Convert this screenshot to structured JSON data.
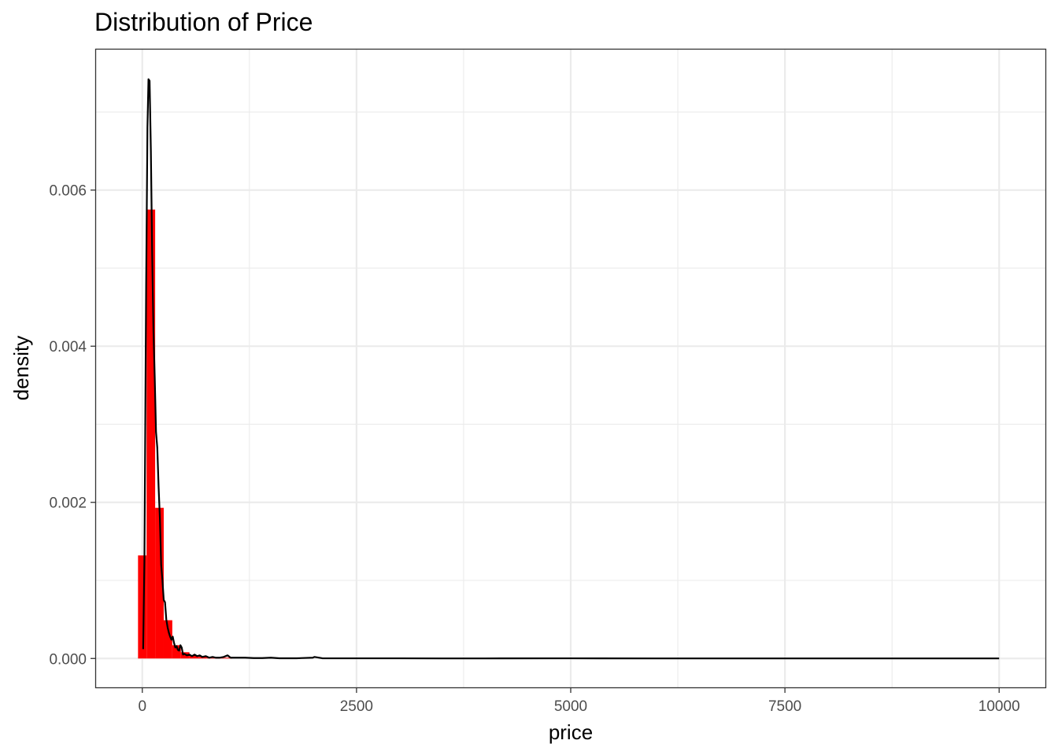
{
  "chart_data": {
    "type": "histogram",
    "title": "Distribution of Price",
    "xlabel": "price",
    "ylabel": "density",
    "xlim": [
      -540,
      10540
    ],
    "ylim": [
      -0.00037,
      0.0078
    ],
    "x_ticks": [
      0,
      2500,
      5000,
      7500,
      10000
    ],
    "x_tick_labels": [
      "0",
      "2500",
      "5000",
      "7500",
      "10000"
    ],
    "y_ticks": [
      0,
      0.002,
      0.004,
      0.006
    ],
    "y_tick_labels": [
      "0.000",
      "0.002",
      "0.004",
      "0.006"
    ],
    "x_minor_ticks": [
      1250,
      3750,
      6250,
      8750
    ],
    "y_minor_ticks": [
      0.001,
      0.003,
      0.005,
      0.007
    ],
    "grid": true,
    "legend": "none",
    "histogram": {
      "fill_color": "#ff0000",
      "bins": [
        {
          "x0": -50,
          "x1": 50,
          "density": 0.00132
        },
        {
          "x0": 50,
          "x1": 150,
          "density": 0.00575
        },
        {
          "x0": 150,
          "x1": 250,
          "density": 0.00193
        },
        {
          "x0": 250,
          "x1": 350,
          "density": 0.00049
        },
        {
          "x0": 350,
          "x1": 450,
          "density": 0.00017
        },
        {
          "x0": 450,
          "x1": 550,
          "density": 8e-05
        },
        {
          "x0": 550,
          "x1": 650,
          "density": 4e-05
        },
        {
          "x0": 650,
          "x1": 750,
          "density": 2e-05
        },
        {
          "x0": 750,
          "x1": 850,
          "density": 1e-05
        },
        {
          "x0": 850,
          "x1": 950,
          "density": 1e-05
        },
        {
          "x0": 950,
          "x1": 1050,
          "density": 1e-05
        }
      ]
    },
    "density_line": {
      "color": "#000000",
      "points": [
        [
          10,
          0.00012
        ],
        [
          25,
          0.0013
        ],
        [
          45,
          0.0048
        ],
        [
          60,
          0.0068
        ],
        [
          72,
          0.00742
        ],
        [
          85,
          0.0074
        ],
        [
          100,
          0.0065
        ],
        [
          115,
          0.0052
        ],
        [
          130,
          0.0042
        ],
        [
          145,
          0.0036
        ],
        [
          160,
          0.0029
        ],
        [
          175,
          0.0027
        ],
        [
          190,
          0.0022
        ],
        [
          205,
          0.0018
        ],
        [
          220,
          0.0012
        ],
        [
          235,
          0.001
        ],
        [
          250,
          0.00075
        ],
        [
          265,
          0.00072
        ],
        [
          280,
          0.0005
        ],
        [
          295,
          0.0004
        ],
        [
          310,
          0.00033
        ],
        [
          325,
          0.00028
        ],
        [
          340,
          0.00024
        ],
        [
          355,
          0.00028
        ],
        [
          370,
          0.0002
        ],
        [
          385,
          0.00014
        ],
        [
          400,
          0.00016
        ],
        [
          415,
          0.00011
        ],
        [
          430,
          0.0001
        ],
        [
          445,
          0.00017
        ],
        [
          460,
          0.00014
        ],
        [
          475,
          5e-05
        ],
        [
          490,
          6e-05
        ],
        [
          505,
          5e-05
        ],
        [
          520,
          4e-05
        ],
        [
          550,
          5e-05
        ],
        [
          580,
          3e-05
        ],
        [
          610,
          5e-05
        ],
        [
          640,
          3e-05
        ],
        [
          670,
          4e-05
        ],
        [
          700,
          2e-05
        ],
        [
          740,
          3e-05
        ],
        [
          780,
          1e-05
        ],
        [
          820,
          2e-05
        ],
        [
          860,
          1e-05
        ],
        [
          900,
          1e-05
        ],
        [
          950,
          2e-05
        ],
        [
          995,
          4e-05
        ],
        [
          1030,
          1e-05
        ],
        [
          1100,
          1e-05
        ],
        [
          1200,
          1e-05
        ],
        [
          1300,
          5e-06
        ],
        [
          1400,
          5e-06
        ],
        [
          1500,
          1e-05
        ],
        [
          1600,
          3e-06
        ],
        [
          1800,
          3e-06
        ],
        [
          1990,
          1e-05
        ],
        [
          2010,
          2e-05
        ],
        [
          2100,
          3e-06
        ],
        [
          2500,
          2e-06
        ],
        [
          3000,
          2e-06
        ],
        [
          3500,
          1e-06
        ],
        [
          4000,
          1e-06
        ],
        [
          5000,
          2e-06
        ],
        [
          6000,
          1e-06
        ],
        [
          7000,
          1e-06
        ],
        [
          8000,
          1e-06
        ],
        [
          9000,
          1e-06
        ],
        [
          10000,
          1e-06
        ]
      ]
    }
  }
}
